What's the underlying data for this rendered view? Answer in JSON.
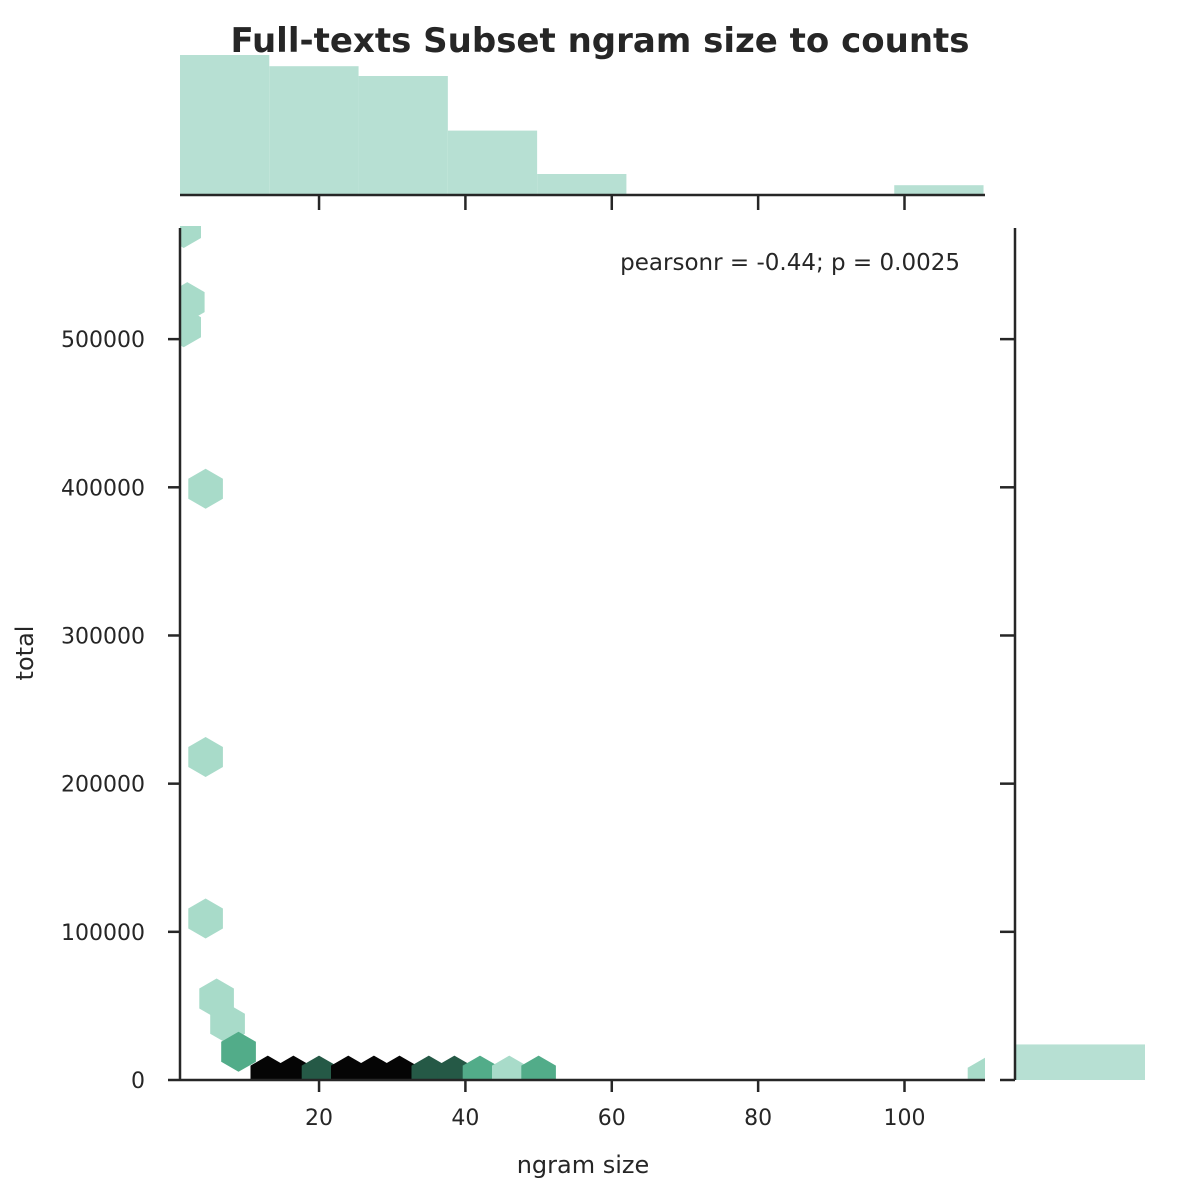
{
  "chart_data": {
    "type": "hexbin",
    "title": "Full-texts Subset ngram size to counts",
    "xlabel": "ngram size",
    "ylabel": "total",
    "annotation": "pearsonr = -0.44; p = 0.0025",
    "xlim": [
      1,
      111
    ],
    "ylim": [
      0,
      575000
    ],
    "xticks": [
      20,
      40,
      60,
      80,
      100
    ],
    "yticks": [
      0,
      100000,
      200000,
      300000,
      400000,
      500000
    ],
    "colors": {
      "hex_light": "#a8dbc9",
      "hex_mid": "#52ac89",
      "hex_dark": "#255946",
      "hex_darkest": "#050505",
      "marginal": "#b7e0d3",
      "axis": "#262626"
    },
    "hexbins": [
      {
        "x": 1.5,
        "y": 575000,
        "level": "light"
      },
      {
        "x": 2,
        "y": 525000,
        "level": "light"
      },
      {
        "x": 1.5,
        "y": 508000,
        "level": "light"
      },
      {
        "x": 4.5,
        "y": 399000,
        "level": "light"
      },
      {
        "x": 4.5,
        "y": 218000,
        "level": "light"
      },
      {
        "x": 4.5,
        "y": 109000,
        "level": "light"
      },
      {
        "x": 6,
        "y": 55000,
        "level": "light"
      },
      {
        "x": 7.5,
        "y": 38000,
        "level": "light"
      },
      {
        "x": 9,
        "y": 19000,
        "level": "mid"
      },
      {
        "x": 13,
        "y": 3000,
        "level": "darkest"
      },
      {
        "x": 16.5,
        "y": 3000,
        "level": "darkest"
      },
      {
        "x": 20,
        "y": 3000,
        "level": "dark"
      },
      {
        "x": 24,
        "y": 3000,
        "level": "darkest"
      },
      {
        "x": 27.5,
        "y": 3000,
        "level": "darkest"
      },
      {
        "x": 31,
        "y": 3000,
        "level": "darkest"
      },
      {
        "x": 35,
        "y": 3000,
        "level": "dark"
      },
      {
        "x": 38.5,
        "y": 3000,
        "level": "dark"
      },
      {
        "x": 42,
        "y": 3000,
        "level": "mid"
      },
      {
        "x": 46,
        "y": 3000,
        "level": "light"
      },
      {
        "x": 50,
        "y": 3000,
        "level": "mid"
      },
      {
        "x": 111,
        "y": 1500,
        "level": "light"
      }
    ],
    "marginal_x": {
      "bins": [
        {
          "x0": 1,
          "x1": 13.2,
          "count": 1.0
        },
        {
          "x0": 13.2,
          "x1": 25.4,
          "count": 0.92
        },
        {
          "x0": 25.4,
          "x1": 37.6,
          "count": 0.85
        },
        {
          "x0": 37.6,
          "x1": 49.8,
          "count": 0.46
        },
        {
          "x0": 49.8,
          "x1": 62.0,
          "count": 0.15
        },
        {
          "x0": 62.0,
          "x1": 74.2,
          "count": 0
        },
        {
          "x0": 74.2,
          "x1": 86.4,
          "count": 0
        },
        {
          "x0": 86.4,
          "x1": 98.6,
          "count": 0
        },
        {
          "x0": 98.6,
          "x1": 110.8,
          "count": 0.07
        }
      ]
    },
    "marginal_y": {
      "bins": [
        {
          "y0": 0,
          "y1": 24000,
          "count": 1.0
        },
        {
          "y0": 24000,
          "y1": 575000,
          "count": 0
        }
      ]
    }
  }
}
